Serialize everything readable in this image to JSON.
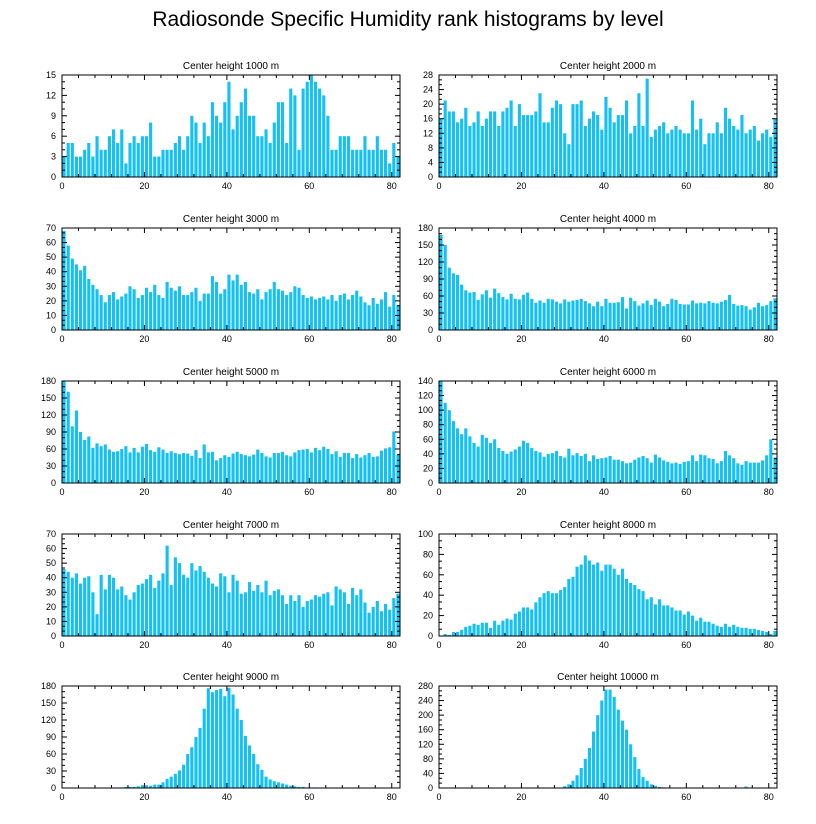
{
  "figure": {
    "title": "Radiosonde Specific Humidity rank histograms by level",
    "bar_color": "#14c0f5",
    "axis_color": "#000000"
  },
  "chart_data": [
    {
      "type": "bar",
      "title": "Center height 1000 m",
      "xlabel": "",
      "ylabel": "",
      "xlim": [
        0,
        82
      ],
      "ylim": [
        0,
        15
      ],
      "xticks": [
        0,
        20,
        40,
        60,
        80
      ],
      "yticks": [
        0,
        3,
        6,
        9,
        12,
        15
      ],
      "values": [
        3,
        5,
        5,
        3,
        3,
        4,
        5,
        3,
        6,
        4,
        4,
        6,
        7,
        5,
        7,
        2,
        5,
        6,
        5,
        6,
        6,
        8,
        3,
        3,
        4,
        4,
        4,
        5,
        6,
        4,
        6,
        9,
        8,
        5,
        8,
        6,
        11,
        9,
        8,
        11,
        14,
        7,
        9,
        11,
        13,
        9,
        9,
        6,
        6,
        7,
        5,
        8,
        11,
        11,
        5,
        13,
        12,
        4,
        13,
        14,
        15,
        14,
        13,
        12,
        9,
        4,
        4,
        6,
        6,
        6,
        4,
        4,
        4,
        6,
        4,
        4,
        6,
        4,
        4,
        2,
        5,
        3
      ]
    },
    {
      "type": "bar",
      "title": "Center height 2000 m",
      "xlabel": "",
      "ylabel": "",
      "xlim": [
        0,
        82
      ],
      "ylim": [
        0,
        28
      ],
      "xticks": [
        0,
        20,
        40,
        60,
        80
      ],
      "yticks": [
        0,
        4,
        8,
        12,
        16,
        20,
        24,
        28
      ],
      "values": [
        16,
        21,
        18,
        18,
        15,
        16,
        19,
        14,
        15,
        18,
        14,
        16,
        18,
        18,
        14,
        18,
        19,
        21,
        14,
        20,
        17,
        17,
        17,
        18,
        23,
        15,
        15,
        19,
        21,
        20,
        12,
        9,
        20,
        20,
        21,
        14,
        16,
        18,
        17,
        13,
        22,
        19,
        15,
        17,
        17,
        21,
        12,
        14,
        23,
        14,
        27,
        11,
        13,
        14,
        15,
        12,
        13,
        14,
        13,
        12,
        12,
        21,
        13,
        16,
        9,
        12,
        12,
        15,
        12,
        19,
        16,
        14,
        13,
        17,
        12,
        13,
        14,
        10,
        12,
        13,
        11,
        16
      ]
    },
    {
      "type": "bar",
      "title": "Center height 3000 m",
      "xlabel": "",
      "ylabel": "",
      "xlim": [
        0,
        82
      ],
      "ylim": [
        0,
        70
      ],
      "xticks": [
        0,
        20,
        40,
        60,
        80
      ],
      "yticks": [
        0,
        10,
        20,
        30,
        40,
        50,
        60,
        70
      ],
      "values": [
        68,
        58,
        49,
        45,
        41,
        44,
        35,
        31,
        28,
        24,
        19,
        24,
        26,
        21,
        23,
        25,
        30,
        28,
        22,
        24,
        29,
        26,
        31,
        24,
        22,
        33,
        29,
        27,
        30,
        24,
        24,
        26,
        29,
        20,
        25,
        25,
        37,
        33,
        25,
        28,
        38,
        34,
        38,
        31,
        33,
        26,
        25,
        28,
        21,
        26,
        28,
        33,
        28,
        27,
        24,
        26,
        30,
        29,
        24,
        22,
        23,
        21,
        22,
        23,
        21,
        24,
        20,
        24,
        25,
        21,
        24,
        27,
        23,
        19,
        17,
        22,
        18,
        21,
        26,
        16,
        24,
        17
      ]
    },
    {
      "type": "bar",
      "title": "Center height 4000 m",
      "xlabel": "",
      "ylabel": "",
      "xlim": [
        0,
        82
      ],
      "ylim": [
        0,
        180
      ],
      "xticks": [
        0,
        20,
        40,
        60,
        80
      ],
      "yticks": [
        0,
        30,
        60,
        90,
        120,
        150,
        180
      ],
      "values": [
        168,
        150,
        110,
        100,
        97,
        80,
        70,
        66,
        67,
        53,
        63,
        70,
        57,
        73,
        65,
        58,
        54,
        64,
        55,
        54,
        62,
        66,
        55,
        48,
        52,
        48,
        55,
        54,
        50,
        47,
        54,
        50,
        52,
        53,
        55,
        51,
        47,
        42,
        50,
        42,
        55,
        48,
        48,
        49,
        58,
        38,
        57,
        51,
        43,
        47,
        52,
        44,
        55,
        50,
        42,
        46,
        55,
        53,
        46,
        45,
        45,
        52,
        47,
        48,
        47,
        51,
        48,
        47,
        50,
        53,
        62,
        46,
        43,
        44,
        42,
        36,
        40,
        48,
        42,
        44,
        51,
        56
      ]
    },
    {
      "type": "bar",
      "title": "Center height 5000 m",
      "xlabel": "",
      "ylabel": "",
      "xlim": [
        0,
        82
      ],
      "ylim": [
        0,
        180
      ],
      "xticks": [
        0,
        20,
        40,
        60,
        80
      ],
      "yticks": [
        0,
        30,
        60,
        90,
        120,
        150,
        180
      ],
      "values": [
        180,
        161,
        100,
        128,
        90,
        76,
        82,
        62,
        70,
        65,
        68,
        59,
        55,
        56,
        60,
        65,
        54,
        62,
        54,
        64,
        69,
        58,
        55,
        63,
        59,
        53,
        56,
        53,
        51,
        53,
        52,
        48,
        58,
        44,
        68,
        54,
        55,
        40,
        44,
        49,
        46,
        52,
        55,
        51,
        49,
        47,
        50,
        59,
        53,
        47,
        45,
        53,
        53,
        55,
        49,
        47,
        54,
        58,
        59,
        60,
        54,
        62,
        58,
        64,
        60,
        51,
        56,
        46,
        53,
        53,
        44,
        51,
        45,
        49,
        53,
        46,
        47,
        57,
        61,
        63,
        91,
        50
      ]
    },
    {
      "type": "bar",
      "title": "Center height 6000 m",
      "xlabel": "",
      "ylabel": "",
      "xlim": [
        0,
        82
      ],
      "ylim": [
        0,
        140
      ],
      "xticks": [
        0,
        20,
        40,
        60,
        80
      ],
      "yticks": [
        0,
        20,
        40,
        60,
        80,
        100,
        120,
        140
      ],
      "values": [
        140,
        110,
        100,
        85,
        75,
        67,
        75,
        64,
        55,
        50,
        66,
        62,
        55,
        60,
        48,
        44,
        40,
        43,
        46,
        50,
        58,
        55,
        48,
        44,
        42,
        36,
        40,
        41,
        44,
        37,
        35,
        47,
        38,
        41,
        37,
        40,
        30,
        38,
        33,
        34,
        35,
        37,
        32,
        32,
        30,
        27,
        28,
        32,
        35,
        37,
        34,
        28,
        39,
        35,
        31,
        29,
        27,
        28,
        26,
        29,
        30,
        38,
        30,
        39,
        38,
        34,
        33,
        27,
        30,
        44,
        38,
        34,
        27,
        25,
        30,
        28,
        28,
        28,
        31,
        38,
        60,
        35
      ]
    },
    {
      "type": "bar",
      "title": "Center height 7000 m",
      "xlabel": "",
      "ylabel": "",
      "xlim": [
        0,
        82
      ],
      "ylim": [
        0,
        70
      ],
      "xticks": [
        0,
        20,
        40,
        60,
        80
      ],
      "yticks": [
        0,
        10,
        20,
        30,
        40,
        50,
        60,
        70
      ],
      "values": [
        46,
        44,
        40,
        43,
        36,
        40,
        41,
        30,
        15,
        42,
        32,
        42,
        40,
        32,
        34,
        28,
        25,
        30,
        35,
        36,
        39,
        42,
        33,
        38,
        43,
        62,
        35,
        54,
        50,
        42,
        40,
        50,
        45,
        48,
        44,
        40,
        36,
        34,
        43,
        41,
        30,
        42,
        38,
        29,
        30,
        37,
        31,
        35,
        30,
        38,
        28,
        31,
        32,
        28,
        22,
        28,
        24,
        28,
        20,
        24,
        25,
        28,
        27,
        29,
        30,
        21,
        34,
        32,
        30,
        22,
        33,
        28,
        32,
        23,
        16,
        20,
        24,
        17,
        22,
        18,
        26,
        29
      ]
    },
    {
      "type": "bar",
      "title": "Center height 8000 m",
      "xlabel": "",
      "ylabel": "",
      "xlim": [
        0,
        82
      ],
      "ylim": [
        0,
        100
      ],
      "xticks": [
        0,
        20,
        40,
        60,
        80
      ],
      "yticks": [
        0,
        20,
        40,
        60,
        80,
        100
      ],
      "values": [
        0,
        2,
        1,
        4,
        4,
        6,
        9,
        10,
        12,
        11,
        13,
        13,
        8,
        15,
        11,
        15,
        17,
        16,
        22,
        24,
        28,
        28,
        26,
        33,
        38,
        42,
        44,
        42,
        42,
        45,
        48,
        56,
        58,
        68,
        70,
        79,
        74,
        70,
        72,
        64,
        70,
        70,
        66,
        60,
        66,
        56,
        52,
        50,
        46,
        44,
        36,
        38,
        31,
        36,
        30,
        30,
        28,
        25,
        25,
        21,
        24,
        20,
        15,
        18,
        14,
        14,
        12,
        10,
        9,
        12,
        9,
        11,
        9,
        8,
        8,
        7,
        7,
        6,
        5,
        4,
        2,
        5
      ]
    },
    {
      "type": "bar",
      "title": "Center height 9000 m",
      "xlabel": "",
      "ylabel": "",
      "xlim": [
        0,
        82
      ],
      "ylim": [
        0,
        180
      ],
      "xticks": [
        0,
        20,
        40,
        60,
        80
      ],
      "yticks": [
        0,
        30,
        60,
        90,
        120,
        150,
        180
      ],
      "values": [
        0,
        0,
        0,
        0,
        0,
        0,
        0,
        0,
        0,
        0,
        0,
        0,
        0,
        0,
        1,
        2,
        2,
        2,
        3,
        5,
        5,
        4,
        6,
        6,
        10,
        16,
        20,
        25,
        31,
        41,
        60,
        72,
        90,
        106,
        140,
        176,
        169,
        173,
        175,
        162,
        177,
        165,
        140,
        120,
        92,
        75,
        60,
        42,
        32,
        20,
        15,
        12,
        10,
        8,
        6,
        4,
        3,
        2,
        2,
        1,
        1,
        1,
        0,
        0,
        0,
        0,
        0,
        0,
        0,
        0,
        0,
        0,
        0,
        0,
        0,
        0,
        0,
        0,
        0,
        0,
        0,
        0
      ]
    },
    {
      "type": "bar",
      "title": "Center height 10000 m",
      "xlabel": "",
      "ylabel": "",
      "xlim": [
        0,
        82
      ],
      "ylim": [
        0,
        280
      ],
      "xticks": [
        0,
        20,
        40,
        60,
        80
      ],
      "yticks": [
        0,
        40,
        80,
        120,
        160,
        200,
        240,
        280
      ],
      "values": [
        0,
        0,
        0,
        0,
        0,
        0,
        0,
        0,
        0,
        0,
        0,
        0,
        0,
        0,
        0,
        0,
        0,
        0,
        0,
        0,
        0,
        0,
        0,
        0,
        0,
        0,
        0,
        0,
        0,
        0,
        5,
        10,
        20,
        35,
        55,
        80,
        110,
        155,
        200,
        240,
        270,
        270,
        250,
        215,
        185,
        160,
        120,
        85,
        52,
        30,
        20,
        10,
        6,
        3,
        2,
        1,
        0,
        0,
        0,
        0,
        0,
        0,
        0,
        0,
        0,
        0,
        0,
        0,
        0,
        0,
        0,
        0,
        0,
        0,
        4,
        0,
        0,
        0,
        0,
        0,
        0,
        0
      ]
    }
  ]
}
